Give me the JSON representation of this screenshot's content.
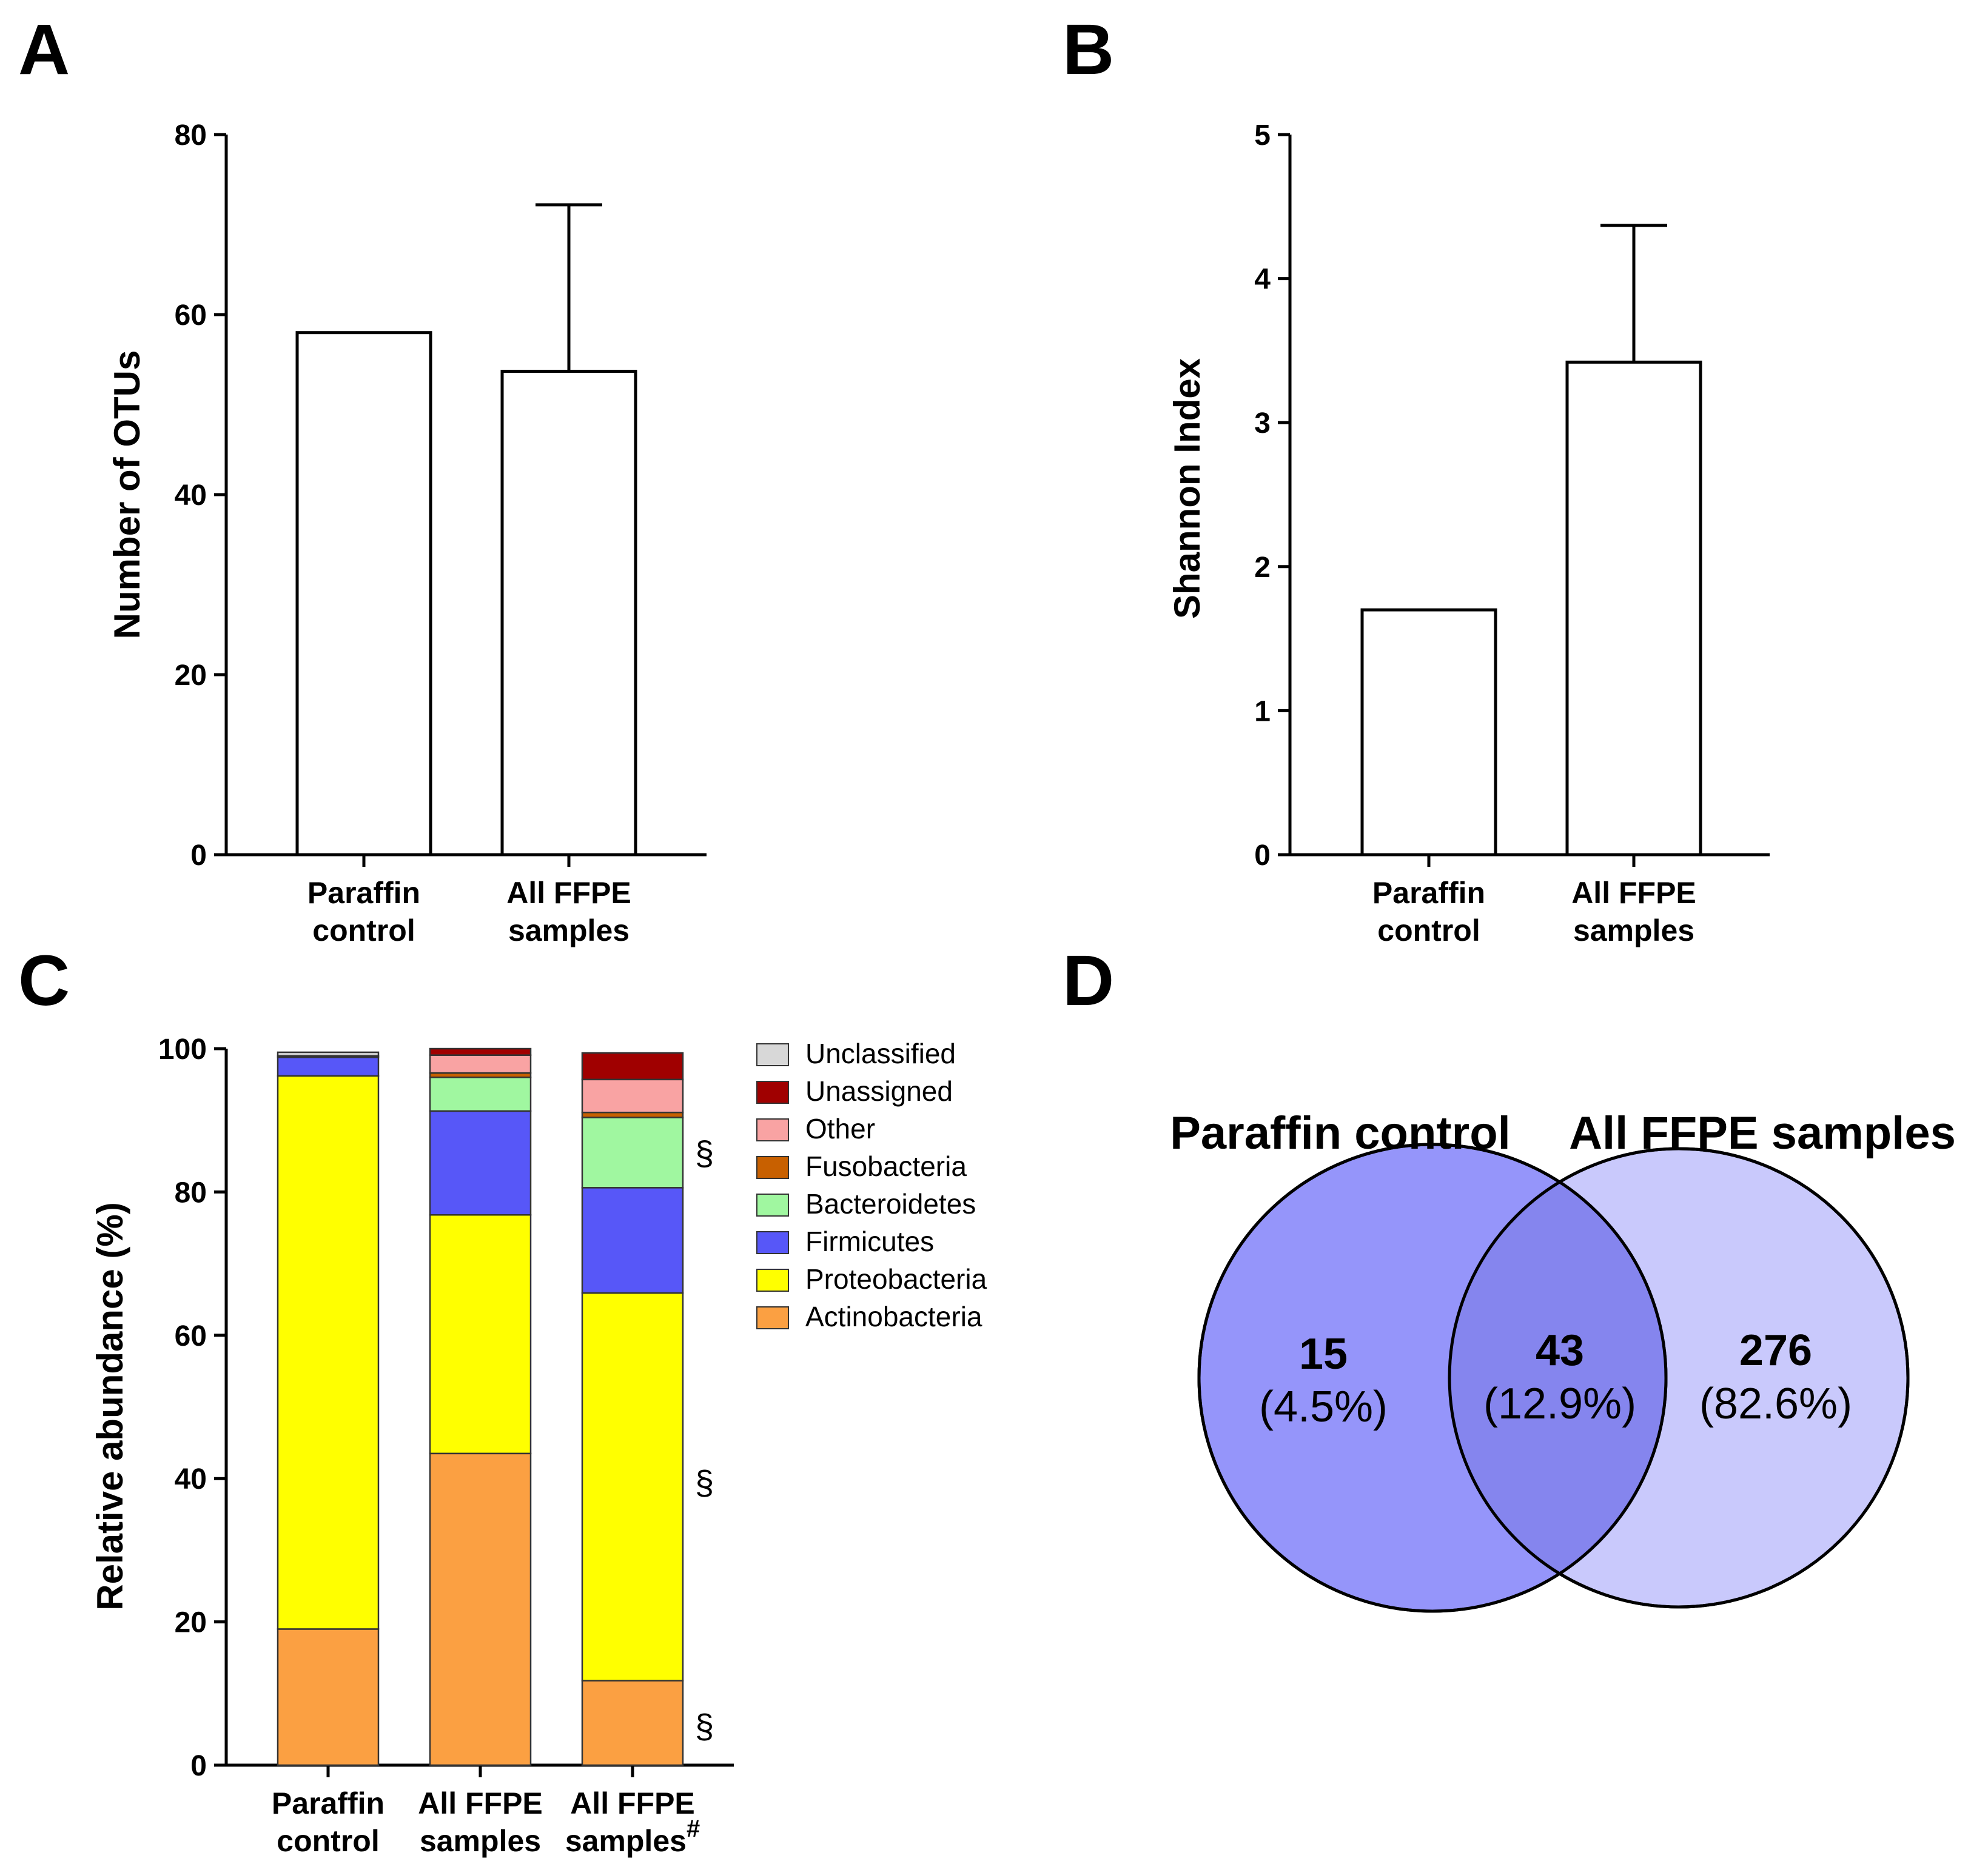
{
  "chart_data": [
    {
      "panel": "A",
      "type": "bar",
      "categories": [
        [
          "Paraffin",
          "control"
        ],
        [
          "All FFPE",
          "samples"
        ]
      ],
      "values": [
        58,
        53.7
      ],
      "error_upper": [
        null,
        72.2
      ],
      "ylabel": "Number of OTUs",
      "ylim": [
        0,
        80
      ],
      "yticks": [
        "0",
        "20",
        "40",
        "60",
        "80"
      ],
      "grid": false
    },
    {
      "panel": "B",
      "type": "bar",
      "categories": [
        [
          "Paraffin",
          "control"
        ],
        [
          "All FFPE",
          "samples"
        ]
      ],
      "values": [
        1.7,
        3.42
      ],
      "error_upper": [
        null,
        4.37
      ],
      "ylabel": "Shannon Index",
      "ylim": [
        0,
        5
      ],
      "yticks": [
        "0",
        "1",
        "2",
        "3",
        "4",
        "5"
      ],
      "grid": false
    },
    {
      "panel": "C",
      "type": "bar",
      "stacked": true,
      "categories": [
        [
          "Paraffin",
          "control"
        ],
        [
          "All FFPE",
          "samples"
        ],
        [
          "All FFPE",
          "samples"
        ]
      ],
      "category_superscripts": [
        "",
        "",
        "#"
      ],
      "ylabel": "Relative abundance (%)",
      "ylim": [
        0,
        100
      ],
      "yticks": [
        "0",
        "20",
        "40",
        "60",
        "80",
        "100"
      ],
      "legend_position": "right",
      "series": [
        {
          "name": "Actinobacteria",
          "color": "#FBA042",
          "values": [
            19,
            43.5,
            11.8
          ]
        },
        {
          "name": "Proteobacteria",
          "color": "#FFFF00",
          "values": [
            77.2,
            33.3,
            54.1
          ]
        },
        {
          "name": "Firmicutes",
          "color": "#5757F8",
          "values": [
            2.6,
            14.5,
            14.7
          ]
        },
        {
          "name": "Bacteroidetes",
          "color": "#A0F7A0",
          "values": [
            0,
            4.7,
            9.8
          ]
        },
        {
          "name": "Fusobacteria",
          "color": "#C86000",
          "values": [
            0,
            0.6,
            0.7
          ]
        },
        {
          "name": "Other",
          "color": "#F9A3A3",
          "values": [
            0.2,
            2.5,
            4.6
          ]
        },
        {
          "name": "Unassigned",
          "color": "#A00000",
          "values": [
            0,
            0.9,
            3.7
          ]
        },
        {
          "name": "Unclassified",
          "color": "#D8D8D8",
          "values": [
            0.5,
            0,
            0
          ]
        }
      ],
      "legend_order": [
        "Unclassified",
        "Unassigned",
        "Other",
        "Fusobacteria",
        "Bacteroidetes",
        "Firmicutes",
        "Proteobacteria",
        "Actinobacteria"
      ],
      "annotations": [
        {
          "text": "§",
          "bar": 2,
          "at_value": 85.5
        },
        {
          "text": "§",
          "bar": 2,
          "at_value": 39.5
        },
        {
          "text": "§",
          "bar": 2,
          "at_value": 5.5
        }
      ]
    },
    {
      "panel": "D",
      "type": "venn",
      "sets": [
        {
          "label": "Paraffin control",
          "color": "#9595FA"
        },
        {
          "label": "All FFPE samples",
          "color": "#C9C9FC"
        }
      ],
      "intersection_color": "#8585EE",
      "regions": [
        {
          "count": "15",
          "percent": "(4.5%)"
        },
        {
          "count": "43",
          "percent": "(12.9%)"
        },
        {
          "count": "276",
          "percent": "(82.6%)"
        }
      ]
    }
  ],
  "panel_labels": [
    "A",
    "B",
    "C",
    "D"
  ]
}
